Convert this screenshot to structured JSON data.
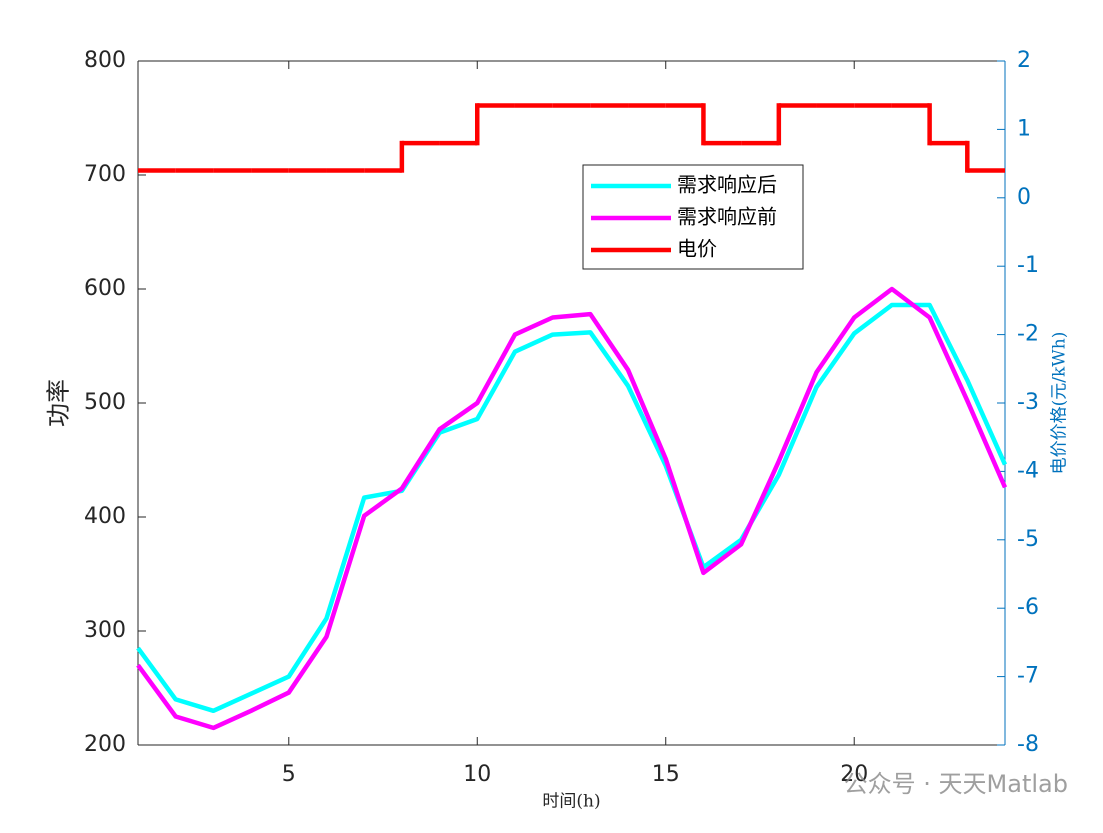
{
  "chart_data": {
    "type": "line",
    "x": [
      1,
      2,
      3,
      4,
      5,
      6,
      7,
      8,
      9,
      10,
      11,
      12,
      13,
      14,
      15,
      16,
      17,
      18,
      19,
      20,
      21,
      22,
      23,
      24
    ],
    "series": [
      {
        "name": "需求响应后",
        "color": "#00ffff",
        "values": [
          285,
          240,
          230,
          245,
          260,
          311,
          417,
          423,
          474,
          486,
          545,
          560,
          562,
          515,
          445,
          356,
          380,
          437,
          514,
          561,
          586,
          586,
          520,
          446
        ]
      },
      {
        "name": "需求响应前",
        "color": "#ff00ff",
        "values": [
          270,
          225,
          215,
          230,
          246,
          295,
          401,
          425,
          477,
          500,
          560,
          575,
          578,
          529,
          451,
          351,
          376,
          449,
          527,
          575,
          600,
          575,
          502,
          426
        ]
      },
      {
        "name": "电价",
        "color": "#ff0000",
        "axis": "y2",
        "step": true,
        "values": [
          0.4,
          0.4,
          0.4,
          0.4,
          0.4,
          0.4,
          0.4,
          0.8,
          0.8,
          1.35,
          1.35,
          1.35,
          1.35,
          1.35,
          1.35,
          0.8,
          0.8,
          1.35,
          1.35,
          1.35,
          1.35,
          0.8,
          0.4,
          0.4
        ]
      }
    ],
    "xlabel": "时间(h)",
    "ylabel": "功率",
    "y2label": "电价价格(元/kWh)",
    "xlim": [
      1,
      24
    ],
    "xticks": [
      5,
      10,
      15,
      20
    ],
    "ylim": [
      200,
      800
    ],
    "yticks": [
      200,
      300,
      400,
      500,
      600,
      700,
      800
    ],
    "y2lim": [
      -8,
      2
    ],
    "y2ticks": [
      -8,
      -7,
      -6,
      -5,
      -4,
      -3,
      -2,
      -1,
      0,
      1,
      2
    ],
    "y2color": "#0072bd",
    "legend": "north",
    "watermark": "公众号 · 天天Matlab"
  }
}
